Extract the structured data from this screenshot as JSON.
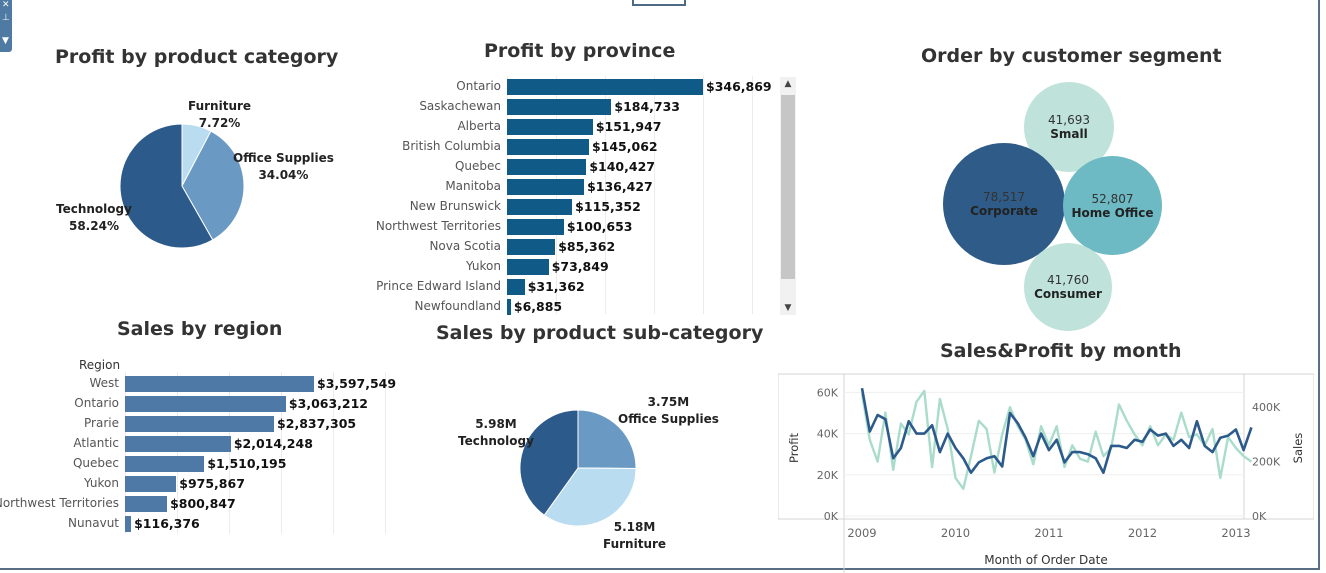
{
  "product_category": {
    "title": "Profit by product category",
    "slices": [
      {
        "name": "Furniture",
        "pct": "7.72%",
        "value": 7.72,
        "color": "#b9dcf0"
      },
      {
        "name": "Office Supplies",
        "pct": "34.04%",
        "value": 34.04,
        "color": "#6a9ac4"
      },
      {
        "name": "Technology",
        "pct": "58.24%",
        "value": 58.24,
        "color": "#2c5a8a"
      }
    ]
  },
  "province": {
    "title": "Profit by province",
    "color": "#0f5a87",
    "max": 346869,
    "rows": [
      {
        "name": "Ontario",
        "label": "$346,869",
        "value": 346869
      },
      {
        "name": "Saskachewan",
        "label": "$184,733",
        "value": 184733
      },
      {
        "name": "Alberta",
        "label": "$151,947",
        "value": 151947
      },
      {
        "name": "British Columbia",
        "label": "$145,062",
        "value": 145062
      },
      {
        "name": "Quebec",
        "label": "$140,427",
        "value": 140427
      },
      {
        "name": "Manitoba",
        "label": "$136,427",
        "value": 136427
      },
      {
        "name": "New Brunswick",
        "label": "$115,352",
        "value": 115352
      },
      {
        "name": "Northwest Territories",
        "label": "$100,653",
        "value": 100653
      },
      {
        "name": "Nova Scotia",
        "label": "$85,362",
        "value": 85362
      },
      {
        "name": "Yukon",
        "label": "$73,849",
        "value": 73849
      },
      {
        "name": "Prince Edward Island",
        "label": "$31,362",
        "value": 31362
      },
      {
        "name": "Newfoundland",
        "label": "$6,885",
        "value": 6885
      }
    ]
  },
  "segment": {
    "title": "Order by customer segment",
    "items": [
      {
        "value": "41,693",
        "name": "Small",
        "color": "#bfe3da"
      },
      {
        "value": "78,517",
        "name": "Corporate",
        "color": "#2e5b87"
      },
      {
        "value": "52,807",
        "name": "Home Office",
        "color": "#6db9c4"
      },
      {
        "value": "41,760",
        "name": "Consumer",
        "color": "#bfe3da"
      }
    ]
  },
  "region": {
    "title": "Sales by region",
    "header": "Region",
    "color": "#4e79a7",
    "max": 3597549,
    "rows": [
      {
        "name": "West",
        "label": "$3,597,549",
        "value": 3597549
      },
      {
        "name": "Ontario",
        "label": "$3,063,212",
        "value": 3063212
      },
      {
        "name": "Prarie",
        "label": "$2,837,305",
        "value": 2837305
      },
      {
        "name": "Atlantic",
        "label": "$2,014,248",
        "value": 2014248
      },
      {
        "name": "Quebec",
        "label": "$1,510,195",
        "value": 1510195
      },
      {
        "name": "Yukon",
        "label": "$975,867",
        "value": 975867
      },
      {
        "name": "Northwest Territories",
        "label": "$800,847",
        "value": 800847
      },
      {
        "name": "Nunavut",
        "label": "$116,376",
        "value": 116376
      }
    ]
  },
  "subcategory": {
    "title": "Sales by product sub-category",
    "slices": [
      {
        "name": "Office Supplies",
        "amount": "3.75M",
        "value": 3.75,
        "color": "#6a9ac4"
      },
      {
        "name": "Furniture",
        "amount": "5.18M",
        "value": 5.18,
        "color": "#b9dcf0"
      },
      {
        "name": "Technology",
        "amount": "5.98M",
        "value": 5.98,
        "color": "#2c5a8a"
      }
    ]
  },
  "monthly": {
    "title": "Sales&Profit by month",
    "xlabel": "Month of Order Date",
    "y_left_label": "Profit",
    "y_right_label": "Sales",
    "y_left_ticks": [
      "60K",
      "40K",
      "20K",
      "0K"
    ],
    "y_right_ticks": [
      "400K",
      "200K",
      "0K"
    ],
    "x_ticks": [
      "2009",
      "2010",
      "2011",
      "2012",
      "2013"
    ]
  },
  "chart_data": [
    {
      "type": "pie",
      "title": "Profit by product category",
      "categories": [
        "Furniture",
        "Office Supplies",
        "Technology"
      ],
      "values": [
        7.72,
        34.04,
        58.24
      ]
    },
    {
      "type": "bar",
      "title": "Profit by province",
      "categories": [
        "Ontario",
        "Saskachewan",
        "Alberta",
        "British Columbia",
        "Quebec",
        "Manitoba",
        "New Brunswick",
        "Northwest Territories",
        "Nova Scotia",
        "Yukon",
        "Prince Edward Island",
        "Newfoundland"
      ],
      "values": [
        346869,
        184733,
        151947,
        145062,
        140427,
        136427,
        115352,
        100653,
        85362,
        73849,
        31362,
        6885
      ]
    },
    {
      "type": "bar",
      "title": "Sales by region",
      "categories": [
        "West",
        "Ontario",
        "Prarie",
        "Atlantic",
        "Quebec",
        "Yukon",
        "Northwest Territories",
        "Nunavut"
      ],
      "values": [
        3597549,
        3063212,
        2837305,
        2014248,
        1510195,
        975867,
        800847,
        116376
      ]
    },
    {
      "type": "pie",
      "title": "Sales by product sub-category",
      "categories": [
        "Office Supplies",
        "Furniture",
        "Technology"
      ],
      "values": [
        3.75,
        5.18,
        5.98
      ]
    },
    {
      "type": "line",
      "title": "Sales&Profit by month",
      "xlabel": "Month of Order Date",
      "ylabel": "Profit",
      "ylim": [
        0,
        66000
      ],
      "y2lim": [
        0,
        500000
      ],
      "xlim": [
        2009.0,
        2013.0
      ],
      "series": [
        {
          "name": "Profit",
          "axis": "left",
          "x_start": 2009.0,
          "x_step": 0.0833,
          "values": [
            62000,
            41000,
            49000,
            47000,
            28000,
            33000,
            46000,
            40000,
            40000,
            44000,
            31000,
            40000,
            33000,
            28000,
            21000,
            26000,
            28000,
            29000,
            24000,
            50000,
            45000,
            38000,
            29000,
            40000,
            32000,
            37000,
            26000,
            31000,
            31000,
            30000,
            28000,
            21000,
            34000,
            34000,
            33000,
            37000,
            36000,
            42000,
            39000,
            40000,
            34000,
            37000,
            33000,
            46000,
            34000,
            31000,
            38000,
            39000,
            42000,
            32000,
            43000
          ]
        },
        {
          "name": "Sales",
          "axis": "right",
          "x_start": 2009.0,
          "x_step": 0.0833,
          "values": [
            450000,
            280000,
            200000,
            380000,
            170000,
            340000,
            300000,
            420000,
            460000,
            180000,
            430000,
            320000,
            140000,
            100000,
            220000,
            350000,
            320000,
            160000,
            300000,
            400000,
            330000,
            280000,
            190000,
            330000,
            260000,
            330000,
            180000,
            260000,
            210000,
            200000,
            310000,
            220000,
            250000,
            410000,
            350000,
            300000,
            260000,
            330000,
            260000,
            300000,
            280000,
            380000,
            290000,
            300000,
            260000,
            320000,
            140000,
            290000,
            250000,
            220000,
            200000
          ]
        }
      ]
    }
  ]
}
